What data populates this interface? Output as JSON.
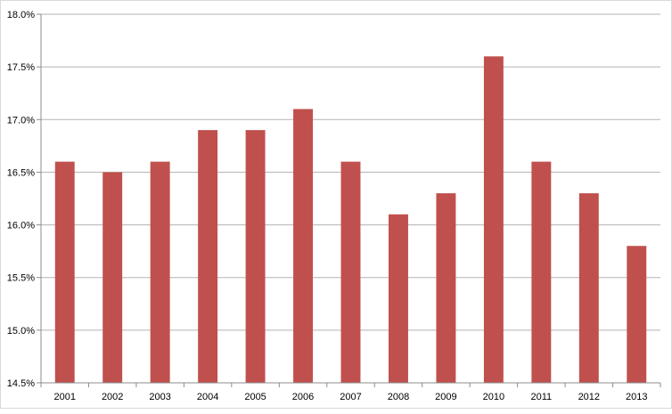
{
  "chart_data": {
    "type": "bar",
    "categories": [
      "2001",
      "2002",
      "2003",
      "2004",
      "2005",
      "2006",
      "2007",
      "2008",
      "2009",
      "2010",
      "2011",
      "2012",
      "2013"
    ],
    "values": [
      16.6,
      16.5,
      16.6,
      16.9,
      16.9,
      17.1,
      16.6,
      16.1,
      16.3,
      17.6,
      16.6,
      16.3,
      15.8
    ],
    "y_ticks": [
      "14.5%",
      "15.0%",
      "15.5%",
      "16.0%",
      "16.5%",
      "17.0%",
      "17.5%",
      "18.0%"
    ],
    "ylim": [
      14.5,
      18.0
    ],
    "unit": "%",
    "grid": true,
    "bar_color": "#c0504d",
    "gridline_color": "#b3b3b3",
    "axis_color": "#8c8c8c"
  }
}
